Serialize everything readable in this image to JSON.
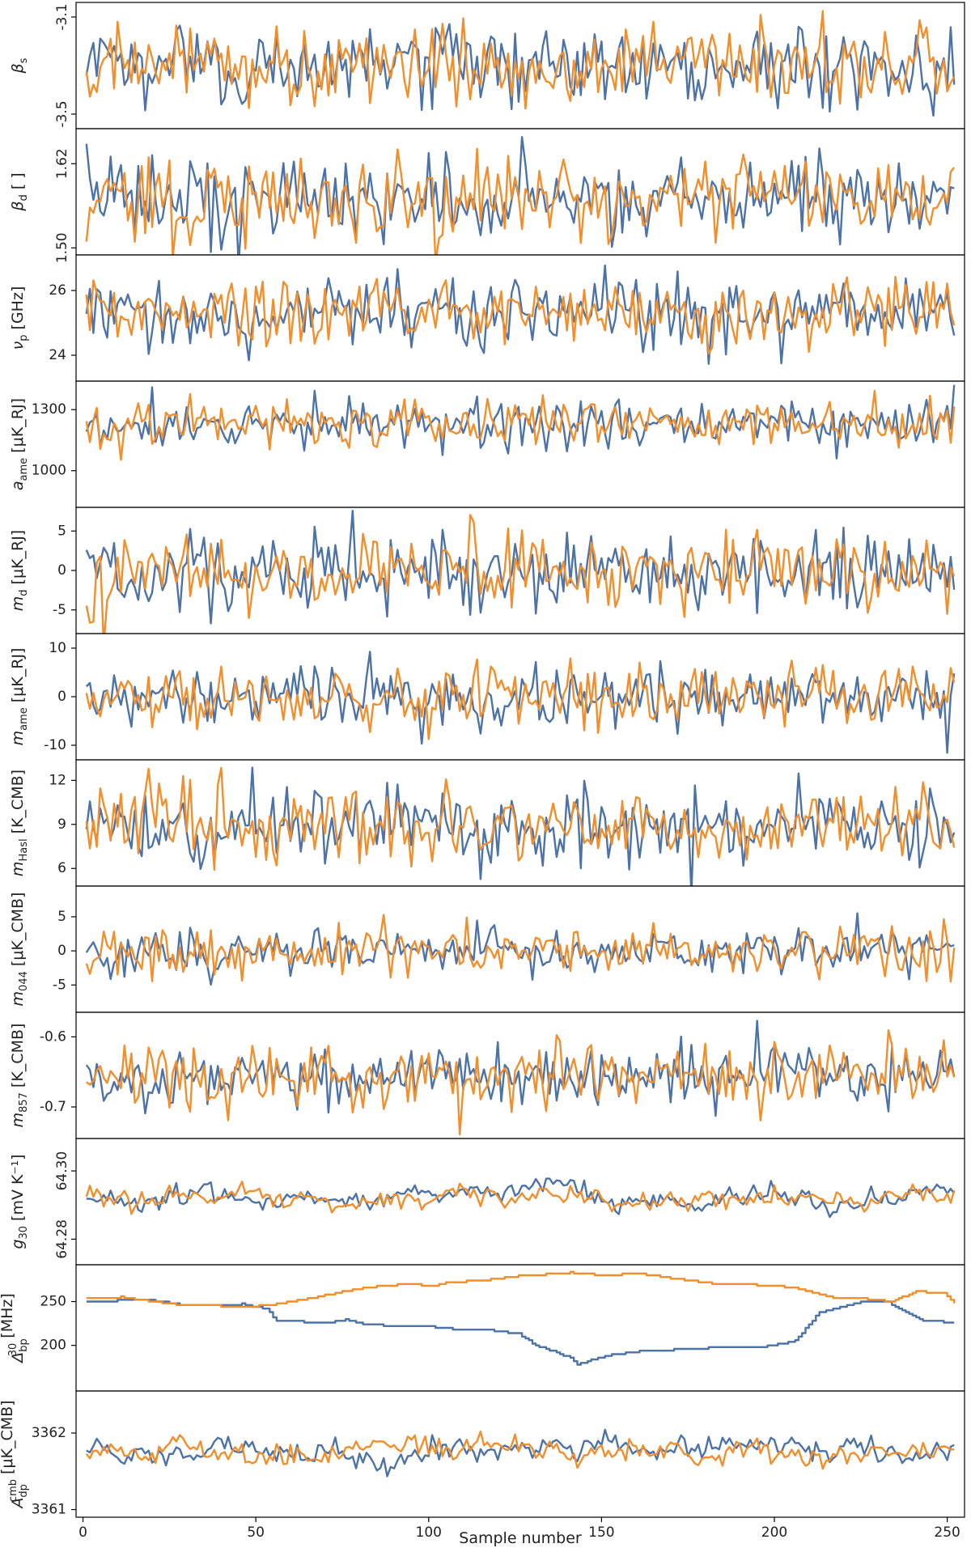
{
  "chart_data": {
    "type": "line",
    "xlabel": "Sample number",
    "xlim": [
      -2,
      255
    ],
    "xticks": [
      0,
      50,
      100,
      150,
      200,
      250
    ],
    "n_samples": 252,
    "series_colors": [
      "#4c72a8",
      "#f28e2b"
    ],
    "panels": [
      {
        "ylabel": "β_s",
        "ylim": [
          -3.56,
          -3.04
        ],
        "yticks": [
          -3.1,
          -3.5
        ],
        "ytick_labels": [
          "-3.1",
          "-3.5"
        ],
        "tick_rotation": -90,
        "kind": "noise",
        "mean": -3.3,
        "amp": 0.08
      },
      {
        "ylabel": "β_d [ ]",
        "ylim": [
          1.49,
          1.67
        ],
        "yticks": [
          1.62,
          1.5
        ],
        "ytick_labels": [
          "1.62",
          "1.50"
        ],
        "tick_rotation": -90,
        "kind": "noise",
        "mean": 1.57,
        "amp": 0.03
      },
      {
        "ylabel": "ν_p [GHz]",
        "ylim": [
          23.2,
          27.1
        ],
        "yticks": [
          26,
          24
        ],
        "ytick_labels": [
          "26",
          "24"
        ],
        "tick_rotation": 0,
        "kind": "noise",
        "mean": 25.3,
        "amp": 0.55
      },
      {
        "ylabel": "a_ame [μK_RJ]",
        "ylim": [
          820,
          1440
        ],
        "yticks": [
          1300,
          1000
        ],
        "ytick_labels": [
          "1300",
          "1000"
        ],
        "tick_rotation": 0,
        "kind": "noise",
        "mean": 1230,
        "amp": 60
      },
      {
        "ylabel": "m_d [μK_RJ]",
        "ylim": [
          -8,
          8
        ],
        "yticks": [
          5,
          0,
          -5
        ],
        "ytick_labels": [
          "5",
          "0",
          "-5"
        ],
        "tick_rotation": 0,
        "kind": "noise",
        "mean": 0,
        "amp": 2.5
      },
      {
        "ylabel": "m_ame [μK_RJ]",
        "ylim": [
          -13,
          13
        ],
        "yticks": [
          10,
          0,
          -10
        ],
        "ytick_labels": [
          "10",
          "0",
          "-10"
        ],
        "tick_rotation": 0,
        "kind": "noise",
        "mean": 0,
        "amp": 3.2
      },
      {
        "ylabel": "m_Hasl [K_CMB]",
        "ylim": [
          4.8,
          13.4
        ],
        "yticks": [
          12,
          9,
          6
        ],
        "ytick_labels": [
          "12",
          "9",
          "6"
        ],
        "tick_rotation": 0,
        "kind": "noise",
        "mean": 9,
        "amp": 1.3
      },
      {
        "ylabel": "m_044 [μK_CMB]",
        "ylim": [
          -9,
          9.5
        ],
        "yticks": [
          5,
          0,
          -5
        ],
        "ytick_labels": [
          "5",
          "0",
          "-5"
        ],
        "tick_rotation": 0,
        "kind": "noise",
        "mean": 0,
        "amp": 1.8
      },
      {
        "ylabel": "m_857 [K_CMB]",
        "ylim": [
          -0.745,
          -0.565
        ],
        "yticks": [
          -0.6,
          -0.7
        ],
        "ytick_labels": [
          "-0.6",
          "-0.7"
        ],
        "tick_rotation": 0,
        "kind": "noise",
        "mean": -0.657,
        "amp": 0.022
      },
      {
        "ylabel": "g_30 [mV K⁻¹]",
        "ylim": [
          64.2725,
          64.3095
        ],
        "yticks": [
          64.3,
          64.28
        ],
        "ytick_labels": [
          "64.30",
          "64.28"
        ],
        "tick_rotation": -90,
        "kind": "gain",
        "mean": 64.292,
        "amp": 0.0025
      },
      {
        "ylabel": "Δ_bp^30 [MHz]",
        "ylim": [
          148,
          292
        ],
        "yticks": [
          250,
          200
        ],
        "ytick_labels": [
          "250",
          "200"
        ],
        "tick_rotation": 0,
        "kind": "bandpass"
      },
      {
        "ylabel": "A_dp^cmb [μK_CMB]",
        "ylim": [
          3360.9,
          3362.55
        ],
        "yticks": [
          3362,
          3361
        ],
        "ytick_labels": [
          "3362",
          "3361"
        ],
        "tick_rotation": 0,
        "kind": "dipole",
        "mean": 3361.75,
        "amp": 0.12
      }
    ]
  }
}
